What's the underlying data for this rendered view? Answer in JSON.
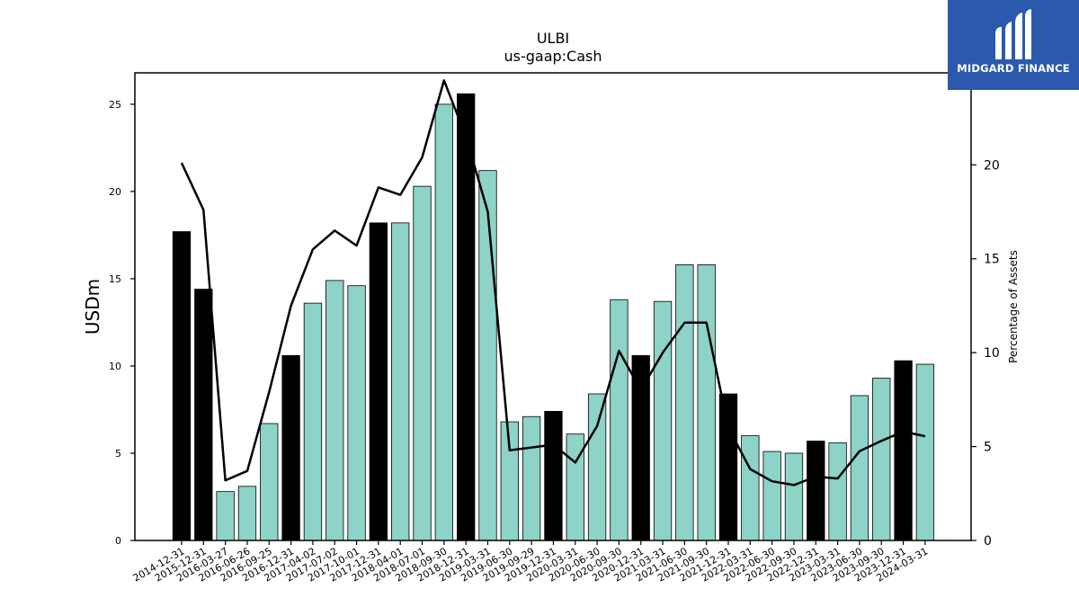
{
  "brand": {
    "name": "MIDGARD FINANCE",
    "bg_color": "#2b5aad"
  },
  "chart_data": {
    "type": "bar",
    "title": "ULBI",
    "subtitle": "us-gaap:Cash",
    "ylabel": "USDm",
    "y2label": "Percentage of Assets",
    "ylim": [
      0,
      26.8
    ],
    "y2lim": [
      0,
      24.9
    ],
    "yticks": [
      0,
      5,
      10,
      15,
      20,
      25
    ],
    "y2ticks": [
      0,
      5,
      10,
      15,
      20
    ],
    "categories": [
      "2014-12-31",
      "2015-12-31",
      "2016-03-27",
      "2016-06-26",
      "2016-09-25",
      "2016-12-31",
      "2017-04-02",
      "2017-07-02",
      "2017-10-01",
      "2017-12-31",
      "2018-04-01",
      "2018-07-01",
      "2018-09-30",
      "2018-12-31",
      "2019-03-31",
      "2019-06-30",
      "2019-09-29",
      "2019-12-31",
      "2020-03-31",
      "2020-06-30",
      "2020-09-30",
      "2020-12-31",
      "2021-03-31",
      "2021-06-30",
      "2021-09-30",
      "2021-12-31",
      "2022-03-31",
      "2022-06-30",
      "2022-09-30",
      "2022-12-31",
      "2023-03-31",
      "2023-06-30",
      "2023-09-30",
      "2023-12-31",
      "2024-03-31"
    ],
    "series": [
      {
        "type": "bar",
        "values": [
          17.7,
          14.4,
          2.8,
          3.1,
          6.7,
          10.6,
          13.6,
          14.9,
          14.6,
          18.2,
          18.2,
          20.3,
          25.0,
          25.6,
          21.2,
          6.8,
          7.1,
          7.4,
          6.1,
          8.4,
          13.8,
          10.6,
          13.7,
          15.8,
          15.8,
          8.4,
          6.0,
          5.1,
          5.0,
          5.7,
          5.6,
          8.3,
          9.3,
          10.3,
          10.1
        ],
        "annual_flags": [
          1,
          1,
          0,
          0,
          0,
          1,
          0,
          0,
          0,
          1,
          0,
          0,
          0,
          1,
          0,
          0,
          0,
          1,
          0,
          0,
          0,
          1,
          0,
          0,
          0,
          1,
          0,
          0,
          0,
          1,
          0,
          0,
          0,
          1,
          0
        ]
      },
      {
        "type": "line",
        "axis": "right",
        "values": [
          20.1,
          17.6,
          3.2,
          3.7,
          7.9,
          12.5,
          15.5,
          16.5,
          15.7,
          18.8,
          18.4,
          20.4,
          24.5,
          21.5,
          17.5,
          4.8,
          4.95,
          5.1,
          4.15,
          6.1,
          10.1,
          8.0,
          10.0,
          11.6,
          11.6,
          6.0,
          3.8,
          3.15,
          2.95,
          3.4,
          3.3,
          4.75,
          5.3,
          5.8,
          5.55
        ]
      }
    ],
    "bar_color": "#8dd3c7",
    "annual_bar_color": "#000000",
    "line_color": "#000000"
  }
}
